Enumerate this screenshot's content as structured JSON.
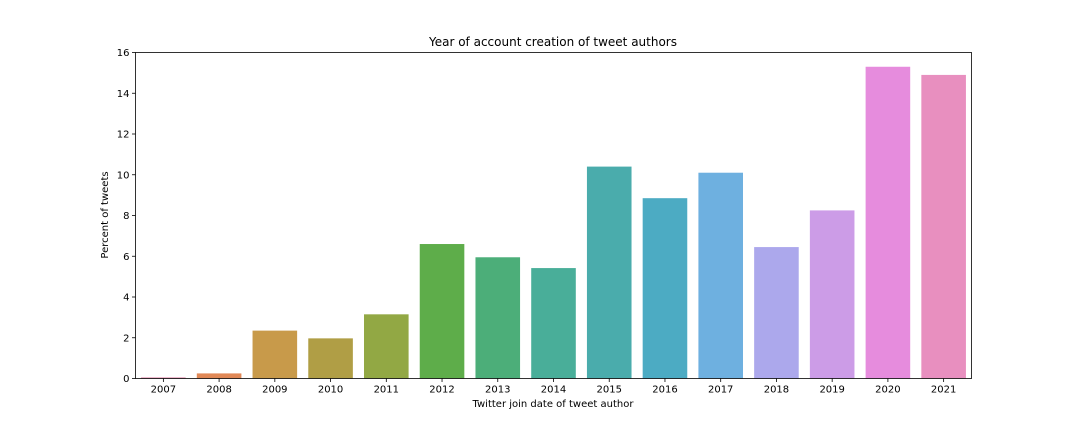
{
  "chart_data": {
    "type": "bar",
    "title": "Year of account creation of tweet authors",
    "xlabel": "Twitter join date of tweet author",
    "ylabel": "Percent of tweets",
    "categories": [
      "2007",
      "2008",
      "2009",
      "2010",
      "2011",
      "2012",
      "2013",
      "2014",
      "2015",
      "2016",
      "2017",
      "2018",
      "2019",
      "2020",
      "2021"
    ],
    "values": [
      0.05,
      0.25,
      2.35,
      1.97,
      3.15,
      6.6,
      5.95,
      5.42,
      10.4,
      8.85,
      10.1,
      6.45,
      8.25,
      15.3,
      14.9
    ],
    "colors": [
      "#e07ba0",
      "#e08856",
      "#c89a4a",
      "#b09e45",
      "#92a844",
      "#5ead4a",
      "#4cae79",
      "#49ae99",
      "#4aacac",
      "#4cabc3",
      "#6eb0e0",
      "#aca8ec",
      "#cc9ce7",
      "#e68cdd",
      "#e88fbf"
    ],
    "ylim": [
      0,
      16
    ],
    "yticks": [
      0,
      2,
      4,
      6,
      8,
      10,
      12,
      14,
      16
    ],
    "grid": false,
    "legend": "none"
  }
}
